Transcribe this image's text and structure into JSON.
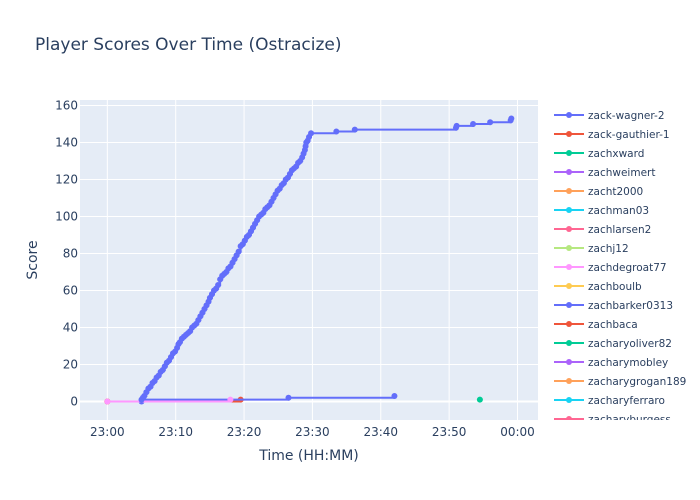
{
  "chart_data": {
    "type": "line",
    "title": "Player Scores Over Time (Ostracize)",
    "xlabel": "Time (HH:MM)",
    "ylabel": "Score",
    "x_range_minutes": [
      -4,
      63
    ],
    "ylim": [
      -10,
      163
    ],
    "x_ticks": [
      {
        "t": 0,
        "label": "23:00"
      },
      {
        "t": 10,
        "label": "23:10"
      },
      {
        "t": 20,
        "label": "23:20"
      },
      {
        "t": 30,
        "label": "23:30"
      },
      {
        "t": 40,
        "label": "23:40"
      },
      {
        "t": 50,
        "label": "23:50"
      },
      {
        "t": 60,
        "label": "00:00"
      }
    ],
    "y_ticks": [
      0,
      20,
      40,
      60,
      80,
      100,
      120,
      140,
      160
    ],
    "grid": true,
    "legend_position": "right",
    "series": [
      {
        "name": "zack-wagner-2",
        "color": "#636efa",
        "points": [
          [
            5.0,
            1
          ],
          [
            5.2,
            2
          ],
          [
            5.4,
            3
          ],
          [
            5.7,
            5
          ],
          [
            6.0,
            7
          ],
          [
            6.3,
            8
          ],
          [
            6.6,
            10
          ],
          [
            6.9,
            11
          ],
          [
            7.2,
            13
          ],
          [
            7.5,
            14
          ],
          [
            7.8,
            16
          ],
          [
            8.1,
            17
          ],
          [
            8.4,
            19
          ],
          [
            8.7,
            21
          ],
          [
            9.0,
            22
          ],
          [
            9.3,
            24
          ],
          [
            9.6,
            26
          ],
          [
            9.9,
            27
          ],
          [
            10.2,
            29
          ],
          [
            10.4,
            31
          ],
          [
            10.6,
            32
          ],
          [
            10.9,
            34
          ],
          [
            11.2,
            35
          ],
          [
            11.5,
            36
          ],
          [
            11.8,
            37
          ],
          [
            12.1,
            38
          ],
          [
            12.4,
            40
          ],
          [
            12.7,
            41
          ],
          [
            13.0,
            42
          ],
          [
            13.3,
            44
          ],
          [
            13.6,
            46
          ],
          [
            13.9,
            48
          ],
          [
            14.2,
            50
          ],
          [
            14.5,
            52
          ],
          [
            14.8,
            54
          ],
          [
            15.0,
            56
          ],
          [
            15.3,
            58
          ],
          [
            15.6,
            60
          ],
          [
            15.9,
            61
          ],
          [
            16.2,
            63
          ],
          [
            16.5,
            66
          ],
          [
            16.8,
            68
          ],
          [
            17.1,
            69
          ],
          [
            17.4,
            70
          ],
          [
            17.7,
            72
          ],
          [
            18.0,
            73
          ],
          [
            18.3,
            75
          ],
          [
            18.6,
            77
          ],
          [
            18.9,
            79
          ],
          [
            19.2,
            81
          ],
          [
            19.5,
            84
          ],
          [
            19.8,
            85
          ],
          [
            20.1,
            87
          ],
          [
            20.4,
            89
          ],
          [
            20.7,
            90
          ],
          [
            21.0,
            92
          ],
          [
            21.3,
            94
          ],
          [
            21.6,
            96
          ],
          [
            21.9,
            98
          ],
          [
            22.2,
            100
          ],
          [
            22.5,
            101
          ],
          [
            22.8,
            102
          ],
          [
            23.1,
            104
          ],
          [
            23.4,
            105
          ],
          [
            23.7,
            106
          ],
          [
            24.0,
            108
          ],
          [
            24.3,
            110
          ],
          [
            24.6,
            112
          ],
          [
            24.9,
            114
          ],
          [
            25.2,
            115
          ],
          [
            25.5,
            117
          ],
          [
            25.8,
            118
          ],
          [
            26.1,
            120
          ],
          [
            26.4,
            121
          ],
          [
            26.7,
            123
          ],
          [
            27.0,
            125
          ],
          [
            27.3,
            126
          ],
          [
            27.6,
            127
          ],
          [
            27.9,
            129
          ],
          [
            28.2,
            130
          ],
          [
            28.5,
            132
          ],
          [
            28.7,
            134
          ],
          [
            28.9,
            136
          ],
          [
            29.0,
            138
          ],
          [
            29.1,
            140
          ],
          [
            29.3,
            141
          ],
          [
            29.5,
            143
          ],
          [
            29.8,
            145
          ],
          [
            33.5,
            146
          ],
          [
            36.2,
            147
          ],
          [
            51.0,
            148
          ],
          [
            51.1,
            149
          ],
          [
            53.5,
            150
          ],
          [
            56.0,
            151
          ],
          [
            59.0,
            152
          ],
          [
            59.1,
            153
          ]
        ]
      },
      {
        "name": "zack-gauthier-1",
        "color": "#EF553B",
        "points": []
      },
      {
        "name": "zachxward",
        "color": "#00cc96",
        "points": []
      },
      {
        "name": "zachweimert",
        "color": "#ab63fa",
        "points": []
      },
      {
        "name": "zacht2000",
        "color": "#FFA15A",
        "points": []
      },
      {
        "name": "zachman03",
        "color": "#19d3f3",
        "points": []
      },
      {
        "name": "zachlarsen2",
        "color": "#FF6692",
        "points": []
      },
      {
        "name": "zachj12",
        "color": "#B6E880",
        "points": []
      },
      {
        "name": "zachdegroat77",
        "color": "#FF97FF",
        "points": [
          [
            0,
            0
          ],
          [
            18.0,
            1
          ]
        ]
      },
      {
        "name": "zachboulb",
        "color": "#FECB52",
        "points": []
      },
      {
        "name": "zachbarker0313",
        "color": "#636efa",
        "points": [
          [
            5.0,
            0
          ],
          [
            5.1,
            1
          ],
          [
            26.5,
            2
          ],
          [
            42.0,
            3
          ]
        ]
      },
      {
        "name": "zachbaca",
        "color": "#EF553B",
        "points": [
          [
            0,
            0
          ],
          [
            19.5,
            1
          ]
        ]
      },
      {
        "name": "zacharyoliver82",
        "color": "#00cc96",
        "points": [
          [
            54.5,
            1
          ]
        ]
      },
      {
        "name": "zacharymobley",
        "color": "#ab63fa",
        "points": []
      },
      {
        "name": "zacharygrogan189",
        "color": "#FFA15A",
        "points": [
          [
            0,
            0
          ]
        ]
      },
      {
        "name": "zacharyferraro",
        "color": "#19d3f3",
        "points": []
      },
      {
        "name": "zacharyburgess",
        "color": "#FF6692",
        "points": []
      }
    ]
  }
}
